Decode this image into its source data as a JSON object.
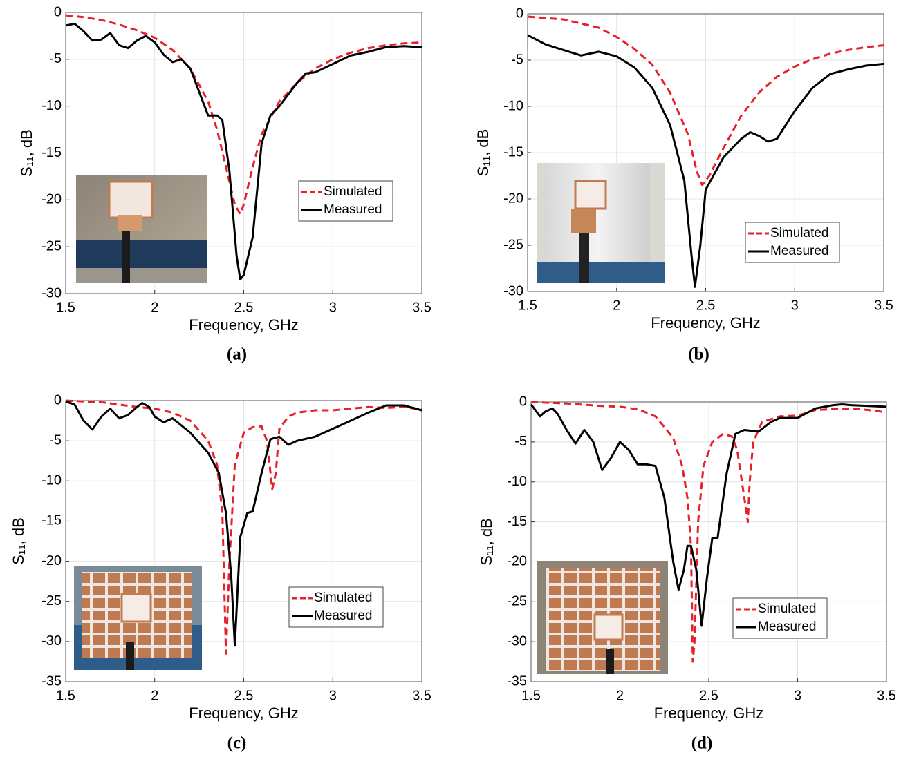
{
  "chart_data": [
    {
      "type": "line",
      "caption": "(a)",
      "xlabel": "Frequency, GHz",
      "ylabel": "S₁₁, dB",
      "xlim": [
        1.5,
        3.5
      ],
      "ylim": [
        -30,
        0
      ],
      "xticks": [
        1.5,
        2,
        2.5,
        3,
        3.5
      ],
      "yticks": [
        -30,
        -25,
        -20,
        -15,
        -10,
        -5,
        0
      ],
      "grid": true,
      "legend": "right",
      "series": [
        {
          "name": "Simulated",
          "color": "#e8202a",
          "style": "dashed",
          "x": [
            1.5,
            1.6,
            1.7,
            1.8,
            1.9,
            2.0,
            2.1,
            2.2,
            2.3,
            2.35,
            2.4,
            2.45,
            2.48,
            2.5,
            2.55,
            2.6,
            2.7,
            2.8,
            2.9,
            3.0,
            3.1,
            3.2,
            3.3,
            3.4,
            3.5
          ],
          "values": [
            -0.3,
            -0.5,
            -0.8,
            -1.3,
            -1.9,
            -2.7,
            -4.0,
            -6.0,
            -9.5,
            -12.5,
            -16.5,
            -20.5,
            -21.5,
            -20.5,
            -16.5,
            -13,
            -9.5,
            -7.5,
            -6,
            -5,
            -4.3,
            -3.8,
            -3.5,
            -3.3,
            -3.2
          ]
        },
        {
          "name": "Measured",
          "color": "#000000",
          "style": "solid",
          "x": [
            1.5,
            1.55,
            1.6,
            1.65,
            1.7,
            1.75,
            1.8,
            1.85,
            1.9,
            1.95,
            2.0,
            2.05,
            2.1,
            2.15,
            2.2,
            2.25,
            2.3,
            2.35,
            2.38,
            2.42,
            2.46,
            2.48,
            2.5,
            2.55,
            2.6,
            2.65,
            2.7,
            2.8,
            2.85,
            2.9,
            3.0,
            3.1,
            3.2,
            3.3,
            3.4,
            3.5
          ],
          "values": [
            -1.4,
            -1.2,
            -2,
            -3,
            -2.9,
            -2.2,
            -3.5,
            -3.8,
            -3.0,
            -2.5,
            -3.2,
            -4.5,
            -5.3,
            -5.0,
            -6,
            -8.5,
            -11,
            -11.0,
            -11.5,
            -17,
            -26,
            -28.5,
            -28,
            -24,
            -14,
            -11,
            -10,
            -7.5,
            -6.5,
            -6.4,
            -5.5,
            -4.6,
            -4.2,
            -3.7,
            -3.6,
            -3.7
          ]
        }
      ]
    },
    {
      "type": "line",
      "caption": "(b)",
      "xlabel": "Frequency, GHz",
      "ylabel": "S₁₁, dB",
      "xlim": [
        1.5,
        3.5
      ],
      "ylim": [
        -30,
        0
      ],
      "xticks": [
        1.5,
        2,
        2.5,
        3,
        3.5
      ],
      "yticks": [
        -30,
        -25,
        -20,
        -15,
        -10,
        -5,
        0
      ],
      "grid": true,
      "legend": "right",
      "series": [
        {
          "name": "Simulated",
          "color": "#e8202a",
          "style": "dashed",
          "x": [
            1.5,
            1.7,
            1.9,
            2.0,
            2.1,
            2.2,
            2.3,
            2.4,
            2.45,
            2.48,
            2.52,
            2.6,
            2.7,
            2.8,
            2.9,
            3.0,
            3.1,
            3.2,
            3.3,
            3.4,
            3.5
          ],
          "values": [
            -0.3,
            -0.6,
            -1.5,
            -2.5,
            -3.8,
            -5.5,
            -8.5,
            -13,
            -17,
            -18.5,
            -17.5,
            -14.5,
            -11,
            -8.5,
            -6.8,
            -5.7,
            -4.9,
            -4.3,
            -3.9,
            -3.6,
            -3.4
          ]
        },
        {
          "name": "Measured",
          "color": "#000000",
          "style": "solid",
          "x": [
            1.5,
            1.6,
            1.7,
            1.8,
            1.9,
            2.0,
            2.1,
            2.2,
            2.3,
            2.38,
            2.42,
            2.44,
            2.47,
            2.5,
            2.6,
            2.7,
            2.75,
            2.8,
            2.85,
            2.9,
            3.0,
            3.1,
            3.2,
            3.3,
            3.4,
            3.5
          ],
          "values": [
            -2.3,
            -3.3,
            -3.9,
            -4.5,
            -4.1,
            -4.6,
            -5.8,
            -8,
            -12,
            -18,
            -26,
            -29.5,
            -25,
            -19,
            -15.5,
            -13.5,
            -12.8,
            -13.2,
            -13.8,
            -13.5,
            -10.5,
            -8,
            -6.5,
            -6,
            -5.6,
            -5.4
          ]
        }
      ]
    },
    {
      "type": "line",
      "caption": "(c)",
      "xlabel": "Frequency, GHz",
      "ylabel": "S₁₁, dB",
      "xlim": [
        1.5,
        3.5
      ],
      "ylim": [
        -35,
        0
      ],
      "xticks": [
        1.5,
        2,
        2.5,
        3,
        3.5
      ],
      "yticks": [
        -35,
        -30,
        -25,
        -20,
        -15,
        -10,
        -5,
        0
      ],
      "grid": true,
      "legend": "right",
      "series": [
        {
          "name": "Simulated",
          "color": "#e8202a",
          "style": "dashed",
          "x": [
            1.5,
            1.6,
            1.7,
            1.8,
            1.9,
            2.0,
            2.1,
            2.2,
            2.3,
            2.35,
            2.38,
            2.4,
            2.42,
            2.45,
            2.5,
            2.55,
            2.6,
            2.63,
            2.66,
            2.68,
            2.7,
            2.75,
            2.8,
            2.9,
            3.0,
            3.1,
            3.2,
            3.3,
            3.4,
            3.5
          ],
          "values": [
            0,
            -0.1,
            -0.2,
            -0.5,
            -0.8,
            -1,
            -1.5,
            -2.5,
            -5,
            -8,
            -14,
            -31.5,
            -20,
            -8,
            -4,
            -3.3,
            -3.2,
            -5,
            -11,
            -9,
            -3.5,
            -2,
            -1.5,
            -1.2,
            -1.2,
            -1.0,
            -0.8,
            -0.9,
            -0.8,
            -1.1
          ]
        },
        {
          "name": "Measured",
          "color": "#000000",
          "style": "solid",
          "x": [
            1.5,
            1.55,
            1.6,
            1.65,
            1.7,
            1.75,
            1.8,
            1.85,
            1.9,
            1.93,
            1.97,
            2.0,
            2.05,
            2.1,
            2.2,
            2.3,
            2.36,
            2.4,
            2.43,
            2.45,
            2.48,
            2.52,
            2.55,
            2.6,
            2.65,
            2.7,
            2.75,
            2.8,
            2.9,
            3.0,
            3.1,
            3.2,
            3.3,
            3.4,
            3.5
          ],
          "values": [
            -0.1,
            -0.5,
            -2.5,
            -3.6,
            -2,
            -1,
            -2.2,
            -1.8,
            -0.8,
            -0.3,
            -0.8,
            -2,
            -2.7,
            -2.2,
            -4,
            -6.5,
            -9,
            -14,
            -22,
            -30.5,
            -17,
            -14,
            -13.8,
            -9,
            -4.8,
            -4.5,
            -5.5,
            -5,
            -4.5,
            -3.5,
            -2.5,
            -1.5,
            -0.6,
            -0.6,
            -1.2
          ]
        }
      ]
    },
    {
      "type": "line",
      "caption": "(d)",
      "xlabel": "Frequency, GHz",
      "ylabel": "S₁₁, dB",
      "xlim": [
        1.5,
        3.5
      ],
      "ylim": [
        -35,
        0
      ],
      "xticks": [
        1.5,
        2,
        2.5,
        3,
        3.5
      ],
      "yticks": [
        -35,
        -30,
        -25,
        -20,
        -15,
        -10,
        -5,
        0
      ],
      "grid": true,
      "legend": "right",
      "series": [
        {
          "name": "Simulated",
          "color": "#e8202a",
          "style": "dashed",
          "x": [
            1.5,
            1.7,
            1.9,
            2.0,
            2.1,
            2.2,
            2.3,
            2.35,
            2.38,
            2.4,
            2.41,
            2.42,
            2.44,
            2.47,
            2.52,
            2.58,
            2.63,
            2.66,
            2.7,
            2.72,
            2.73,
            2.75,
            2.8,
            2.9,
            3.0,
            3.1,
            3.2,
            3.3,
            3.4,
            3.5
          ],
          "values": [
            0,
            -0.2,
            -0.5,
            -0.6,
            -0.9,
            -1.8,
            -4.5,
            -8,
            -12,
            -18,
            -32.5,
            -30,
            -15,
            -8,
            -5,
            -4,
            -4.3,
            -6,
            -12,
            -15,
            -10,
            -5,
            -2.5,
            -1.8,
            -1.7,
            -1.0,
            -0.9,
            -0.8,
            -1.0,
            -1.3
          ]
        },
        {
          "name": "Measured",
          "color": "#000000",
          "style": "solid",
          "x": [
            1.5,
            1.55,
            1.58,
            1.62,
            1.65,
            1.7,
            1.75,
            1.8,
            1.85,
            1.9,
            1.95,
            2.0,
            2.05,
            2.1,
            2.15,
            2.2,
            2.25,
            2.3,
            2.33,
            2.36,
            2.38,
            2.4,
            2.43,
            2.46,
            2.49,
            2.52,
            2.55,
            2.6,
            2.65,
            2.7,
            2.78,
            2.85,
            2.9,
            3.0,
            3.1,
            3.2,
            3.25,
            3.3,
            3.5
          ],
          "values": [
            -0.3,
            -1.8,
            -1.2,
            -0.8,
            -1.5,
            -3.5,
            -5.2,
            -3.5,
            -5,
            -8.5,
            -7,
            -5,
            -6,
            -7.8,
            -7.8,
            -8,
            -12,
            -20,
            -23.5,
            -21,
            -18,
            -18,
            -21,
            -28,
            -22,
            -17,
            -17,
            -9,
            -4,
            -3.5,
            -3.7,
            -2.5,
            -2,
            -2.0,
            -0.8,
            -0.4,
            -0.3,
            -0.4,
            -0.6
          ]
        }
      ]
    }
  ]
}
